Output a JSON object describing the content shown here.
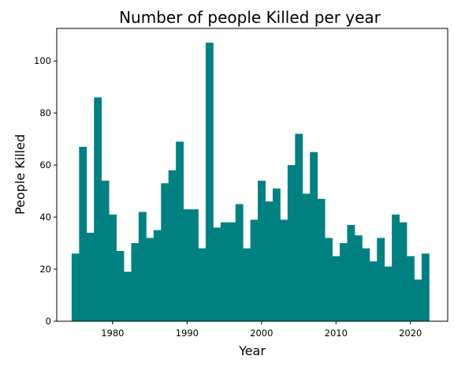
{
  "chart_data": {
    "type": "bar",
    "title": "Number of people Killed per year",
    "xlabel": "Year",
    "ylabel": "People Killed",
    "x": [
      1975,
      1976,
      1977,
      1978,
      1979,
      1980,
      1981,
      1982,
      1983,
      1984,
      1985,
      1986,
      1987,
      1988,
      1989,
      1990,
      1991,
      1992,
      1993,
      1994,
      1995,
      1996,
      1997,
      1998,
      1999,
      2000,
      2001,
      2002,
      2003,
      2004,
      2005,
      2006,
      2007,
      2008,
      2009,
      2010,
      2011,
      2012,
      2013,
      2014,
      2015,
      2016,
      2017,
      2018,
      2019,
      2020,
      2021,
      2022
    ],
    "values": [
      26,
      67,
      34,
      86,
      54,
      41,
      27,
      19,
      30,
      42,
      32,
      35,
      53,
      58,
      69,
      43,
      43,
      28,
      107,
      36,
      38,
      38,
      45,
      28,
      39,
      54,
      46,
      51,
      39,
      60,
      72,
      49,
      65,
      47,
      32,
      25,
      30,
      37,
      33,
      28,
      23,
      32,
      21,
      41,
      38,
      25,
      16,
      26
    ],
    "xlim": [
      1972.5,
      2025.0
    ],
    "ylim": [
      0,
      112.5
    ],
    "xticks": [
      1980,
      1990,
      2000,
      2010,
      2020
    ],
    "yticks": [
      0,
      20,
      40,
      60,
      80,
      100
    ],
    "grid": false,
    "legend": "none",
    "bar_color": "#008080"
  }
}
